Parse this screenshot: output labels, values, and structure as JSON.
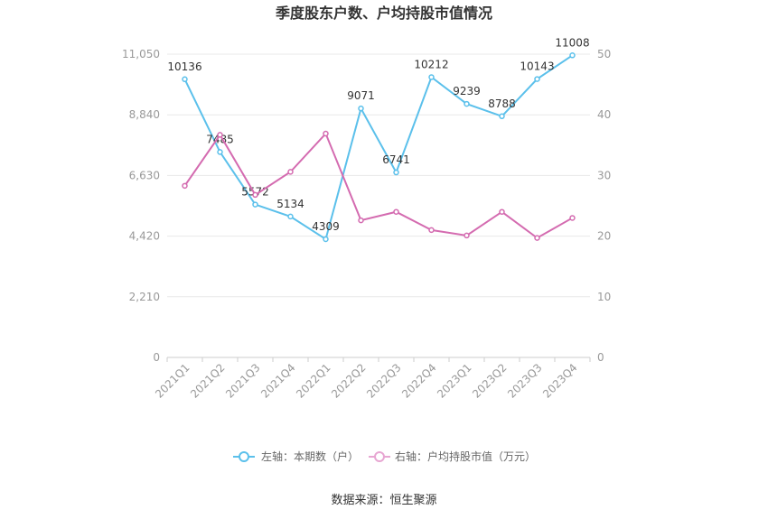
{
  "chart_data": {
    "type": "line",
    "title": "季度股东户数、户均持股市值情况",
    "categories": [
      "2021Q1",
      "2021Q2",
      "2021Q3",
      "2021Q4",
      "2022Q1",
      "2022Q2",
      "2022Q3",
      "2022Q4",
      "2023Q1",
      "2023Q2",
      "2023Q3",
      "2023Q4"
    ],
    "series": [
      {
        "name": "左轴：本期数（户）",
        "axis": "left",
        "color": "#5bc0eb",
        "values": [
          10136,
          7485,
          5572,
          5134,
          4309,
          9071,
          6741,
          10212,
          9239,
          8788,
          10143,
          11008
        ],
        "labels": [
          "10136",
          "7485",
          "5572",
          "5134",
          "4309",
          "9071",
          "6741",
          "10212",
          "9239",
          "8788",
          "10143",
          "11008"
        ]
      },
      {
        "name": "右轴：户均持股市值（万元）",
        "axis": "right",
        "color": "#d46bb0",
        "values": [
          28.3,
          36.7,
          26.8,
          30.6,
          36.9,
          22.6,
          24.0,
          21.0,
          20.1,
          24.0,
          19.7,
          23.0
        ]
      }
    ],
    "left_axis": {
      "ylim": [
        0,
        11050
      ],
      "ticks": [
        "0",
        "2,210",
        "4,420",
        "6,630",
        "8,840",
        "11,050"
      ],
      "tick_values": [
        0,
        2210,
        4420,
        6630,
        8840,
        11050
      ]
    },
    "right_axis": {
      "ylim": [
        0,
        50
      ],
      "ticks": [
        "0",
        "10",
        "20",
        "30",
        "40",
        "50"
      ],
      "tick_values": [
        0,
        10,
        20,
        30,
        40,
        50
      ]
    },
    "grid": true,
    "legend_position": "bottom"
  },
  "source": "数据来源：恒生聚源"
}
